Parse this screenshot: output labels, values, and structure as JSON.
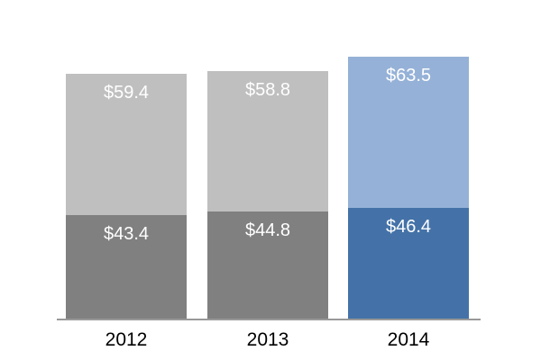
{
  "chart_data": {
    "type": "bar",
    "subtype": "stacked",
    "categories": [
      "2012",
      "2013",
      "2014"
    ],
    "series": [
      {
        "name": "bottom",
        "values": [
          43.4,
          44.8,
          46.4
        ],
        "labels": [
          "$43.4",
          "$44.8",
          "$46.4"
        ],
        "colors": [
          "#808080",
          "#808080",
          "#4472A8"
        ]
      },
      {
        "name": "top",
        "values": [
          59.4,
          58.8,
          63.5
        ],
        "labels": [
          "$59.4",
          "$58.8",
          "$63.5"
        ],
        "colors": [
          "#BFBFBF",
          "#BFBFBF",
          "#95B1D7"
        ]
      }
    ],
    "title": "",
    "xlabel": "",
    "ylabel": "",
    "value_prefix": "$",
    "ylim": [
      0,
      133.7
    ],
    "gridlines": false,
    "legend": "none",
    "axis_line_color": "#999999",
    "bar_label_color": "#FFFFFF",
    "category_label_color": "#000000",
    "background_color": "#FFFFFF"
  }
}
